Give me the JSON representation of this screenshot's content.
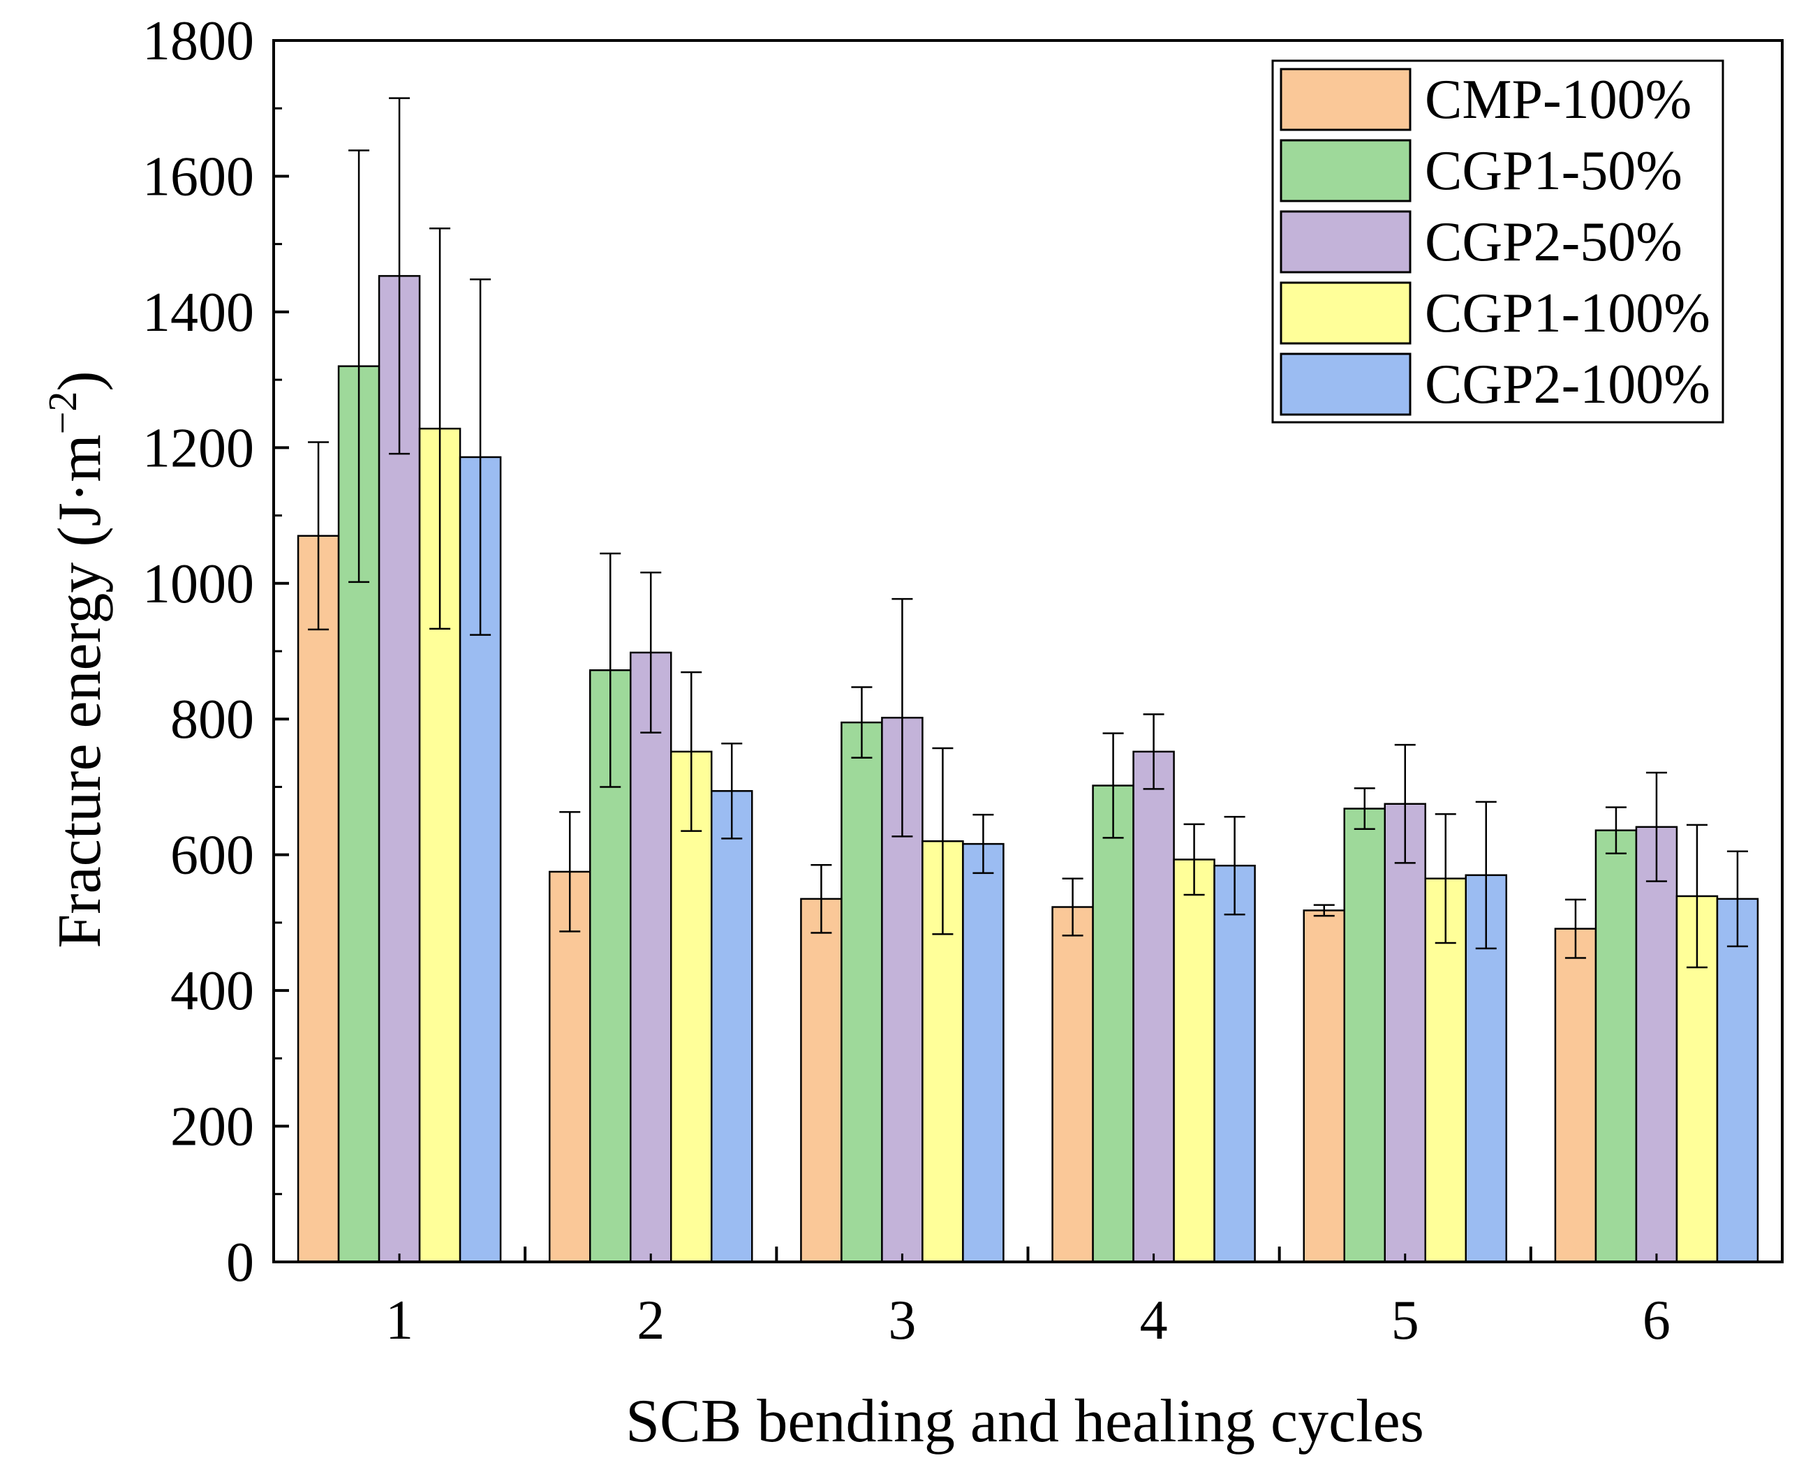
{
  "chart_data": {
    "type": "bar",
    "title": "",
    "xlabel": "SCB bending and healing cycles",
    "ylabel": "Fracture energy (J·m",
    "ylabel_unit_exponent": "−2",
    "ylabel_close": ")",
    "ylim": [
      0,
      1800
    ],
    "yticks": [
      0,
      200,
      400,
      600,
      800,
      1000,
      1200,
      1400,
      1600,
      1800
    ],
    "categories": [
      "1",
      "2",
      "3",
      "4",
      "5",
      "6"
    ],
    "legend_position": "top-right",
    "series": [
      {
        "name": "CMP-100%",
        "color": "#FAC898",
        "values": [
          1070,
          575,
          535,
          523,
          518,
          491
        ],
        "errors": [
          138,
          88,
          50,
          42,
          8,
          43
        ]
      },
      {
        "name": "CGP1-50%",
        "color": "#9ED99A",
        "values": [
          1320,
          872,
          795,
          702,
          668,
          636
        ],
        "errors": [
          318,
          172,
          52,
          77,
          30,
          34
        ]
      },
      {
        "name": "CGP2-50%",
        "color": "#C3B3D9",
        "values": [
          1453,
          898,
          802,
          752,
          675,
          641
        ],
        "errors": [
          262,
          118,
          175,
          55,
          87,
          80
        ]
      },
      {
        "name": "CGP1-100%",
        "color": "#FFFF99",
        "values": [
          1228,
          752,
          620,
          593,
          565,
          539
        ],
        "errors": [
          295,
          117,
          137,
          52,
          95,
          105
        ]
      },
      {
        "name": "CGP2-100%",
        "color": "#9BBCF2",
        "values": [
          1186,
          694,
          616,
          584,
          570,
          535
        ],
        "errors": [
          262,
          70,
          43,
          72,
          108,
          70
        ]
      }
    ]
  }
}
